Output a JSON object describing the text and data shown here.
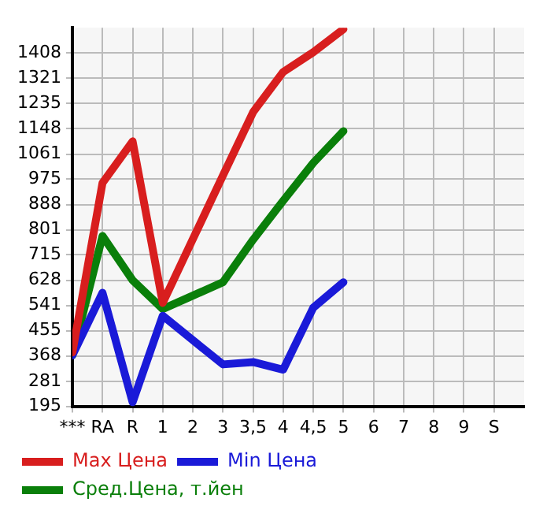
{
  "chart_data": {
    "type": "line",
    "categories": [
      "***",
      "RA",
      "R",
      "1",
      "2",
      "3",
      "3,5",
      "4",
      "4,5",
      "5",
      "6",
      "7",
      "8",
      "9",
      "S"
    ],
    "series": [
      {
        "name": "Max Цена",
        "color": "#d81e1e",
        "values": [
          380,
          962,
          1105,
          550,
          769,
          988,
          1205,
          1343,
          1411,
          1490,
          null,
          null,
          null,
          null,
          null
        ]
      },
      {
        "name": "Min Цена",
        "color": "#1a1ad8",
        "values": [
          370,
          585,
          209,
          506,
          422,
          339,
          347,
          321,
          534,
          621,
          null,
          null,
          null,
          null,
          null
        ]
      },
      {
        "name": "Сред.Цена, т.йен",
        "color": "#0a7f0a",
        "values": [
          370,
          780,
          628,
          529,
          575,
          621,
          767,
          901,
          1031,
          1140,
          null,
          null,
          null,
          null,
          null
        ]
      }
    ],
    "ylim": [
      195,
      1495
    ],
    "yticks": [
      195,
      281,
      368,
      455,
      541,
      628,
      715,
      801,
      888,
      975,
      1061,
      1148,
      1235,
      1321,
      1408
    ],
    "grid": true,
    "legend": "bottom",
    "marker": "none",
    "line_style": "solid"
  }
}
